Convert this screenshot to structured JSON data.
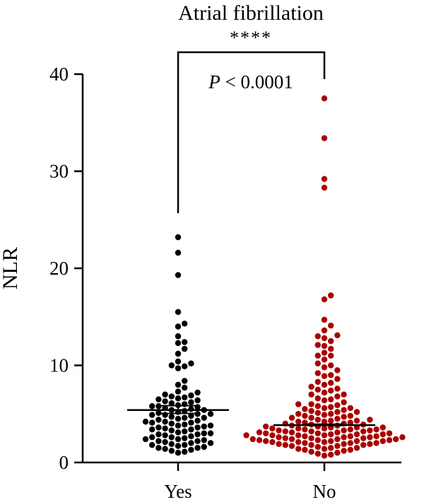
{
  "chart_data": {
    "type": "scatter",
    "title": "Atrial fibrillation",
    "ylabel": "NLR",
    "xlabel": "",
    "categories": [
      "Yes",
      "No"
    ],
    "ylim": [
      0,
      40
    ],
    "yticks": [
      0,
      10,
      20,
      30,
      40
    ],
    "grid": false,
    "legend": "none",
    "significance": {
      "stars": "****",
      "p_prefix": "P",
      "p_text": " < 0.0001"
    },
    "colors": {
      "Yes": "#000000",
      "No": "#aa0000"
    },
    "series": [
      {
        "category": "Yes",
        "mean": 5.4,
        "sem": [
          5.05,
          5.85
        ],
        "values": [
          23.2,
          21.6,
          19.3,
          15.5,
          14.3,
          14.0,
          13.0,
          12.4,
          12.3,
          11.7,
          11.2,
          10.4,
          10.2,
          10.0,
          9.9,
          9.7,
          8.4,
          8.0,
          7.7,
          7.3,
          7.2,
          7.0,
          6.9,
          6.8,
          6.7,
          6.5,
          6.4,
          6.3,
          6.2,
          6.1,
          6.0,
          5.9,
          5.8,
          5.7,
          5.6,
          5.5,
          5.4,
          5.3,
          5.2,
          5.1,
          5.0,
          4.9,
          4.8,
          4.7,
          4.6,
          4.5,
          4.4,
          4.3,
          4.2,
          4.1,
          4.0,
          3.9,
          3.8,
          3.7,
          3.6,
          3.5,
          3.4,
          3.3,
          3.2,
          3.1,
          3.0,
          2.9,
          2.8,
          2.7,
          2.6,
          2.5,
          2.4,
          2.3,
          2.2,
          2.1,
          2.0,
          1.9,
          1.8,
          1.7,
          1.6,
          1.5,
          1.4,
          1.3,
          1.2,
          1.1,
          1.0,
          2.2,
          2.6,
          3.0,
          3.4,
          3.8,
          4.2,
          4.6,
          5.0,
          5.4,
          1.8,
          2.4,
          2.9,
          3.6,
          4.1,
          4.9,
          5.8,
          6.6,
          1.5,
          2.0
        ]
      },
      {
        "category": "No",
        "mean": 3.85,
        "sem": [
          3.8,
          3.95
        ],
        "values": [
          37.5,
          33.4,
          29.2,
          28.3,
          17.2,
          16.8,
          14.7,
          14.1,
          13.6,
          13.1,
          12.8,
          12.5,
          12.1,
          11.7,
          11.3,
          11.0,
          10.6,
          10.2,
          9.8,
          9.5,
          9.2,
          8.9,
          8.6,
          8.3,
          8.0,
          7.8,
          7.6,
          7.4,
          7.2,
          7.0,
          6.8,
          6.6,
          6.4,
          6.2,
          6.0,
          5.9,
          5.8,
          5.7,
          5.6,
          5.5,
          5.4,
          5.3,
          5.2,
          5.1,
          5.0,
          4.9,
          4.8,
          4.7,
          4.6,
          4.5,
          4.4,
          4.3,
          4.2,
          4.1,
          4.0,
          3.9,
          3.8,
          3.7,
          3.6,
          3.5,
          3.4,
          3.3,
          3.2,
          3.1,
          3.0,
          2.9,
          2.8,
          2.7,
          2.6,
          2.5,
          2.4,
          2.3,
          2.2,
          2.1,
          2.0,
          1.9,
          1.8,
          1.7,
          1.6,
          1.5,
          1.4,
          1.3,
          1.2,
          1.1,
          1.0,
          0.9,
          0.8,
          0.7,
          3.5,
          3.3,
          3.1,
          2.9,
          2.7,
          2.5,
          2.3,
          2.1,
          1.9,
          1.7,
          1.5,
          1.3,
          2.8,
          2.6,
          2.4,
          2.2,
          2.0,
          1.8,
          3.6,
          3.4,
          3.2,
          3.0,
          2.8,
          2.6,
          2.4,
          2.2,
          4.3,
          4.1,
          3.9,
          3.7,
          3.5,
          3.3,
          3.1,
          2.9,
          2.7,
          2.5,
          2.3,
          2.1,
          1.9,
          5.0,
          4.6,
          4.2,
          3.8,
          3.4,
          3.0,
          2.6,
          2.2,
          1.8,
          1.4,
          2.0,
          2.4,
          2.8,
          3.2,
          3.6,
          4.0,
          4.4,
          4.8,
          5.2,
          5.6,
          6.0,
          6.5,
          7.0,
          7.5,
          8.2,
          9.0,
          10.0,
          11.0,
          12.0,
          13.0
        ]
      }
    ]
  }
}
